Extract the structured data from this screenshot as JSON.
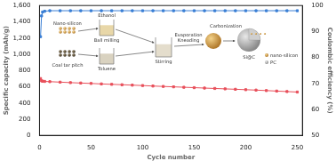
{
  "chart_data": {
    "type": "line",
    "x_label": "Cycle number",
    "y_label": "Specific capacity (mAh/g)",
    "y2_label": "Coulombic efficiency (%)",
    "x": [
      1,
      2,
      3,
      5,
      10,
      20,
      30,
      40,
      50,
      60,
      70,
      80,
      90,
      100,
      110,
      120,
      130,
      140,
      150,
      160,
      170,
      180,
      190,
      200,
      210,
      220,
      230,
      240,
      250
    ],
    "series": [
      {
        "color": "#e8505b",
        "marker": "square",
        "values": [
          700,
          672,
          668,
          665,
          662,
          656,
          650,
          645,
          640,
          634,
          629,
          624,
          619,
          614,
          608,
          603,
          598,
          593,
          588,
          583,
          578,
          573,
          568,
          563,
          558,
          552,
          546,
          540,
          534
        ]
      },
      {
        "color": "#3a7fd5",
        "marker": "square",
        "axis": "y2",
        "values": [
          88,
          96,
          97.5,
          97.8,
          98,
          98,
          98,
          98,
          98,
          98,
          98,
          98,
          98,
          98,
          98,
          98,
          98,
          98,
          98,
          98,
          98,
          98,
          98,
          98,
          98,
          98,
          98,
          98,
          98
        ]
      }
    ],
    "xlim": [
      0,
      255
    ],
    "xticks": [
      0,
      50,
      100,
      150,
      200,
      250
    ],
    "ylim": [
      0,
      1600
    ],
    "yticks": [
      0,
      200,
      400,
      600,
      800,
      1000,
      1200,
      1400,
      1600
    ],
    "y2lim": [
      50,
      100
    ],
    "y2ticks": [
      50,
      60,
      70,
      80,
      90,
      100
    ],
    "grid": false,
    "annotations": [
      "Nano-silicon",
      "Ethanol",
      "Ball milling",
      "Coal tar pitch",
      "Toluene",
      "Stirring",
      "Evaporation",
      "Kneading",
      "Carbonization",
      "Si@C",
      "nano-silicon",
      "PC"
    ]
  }
}
